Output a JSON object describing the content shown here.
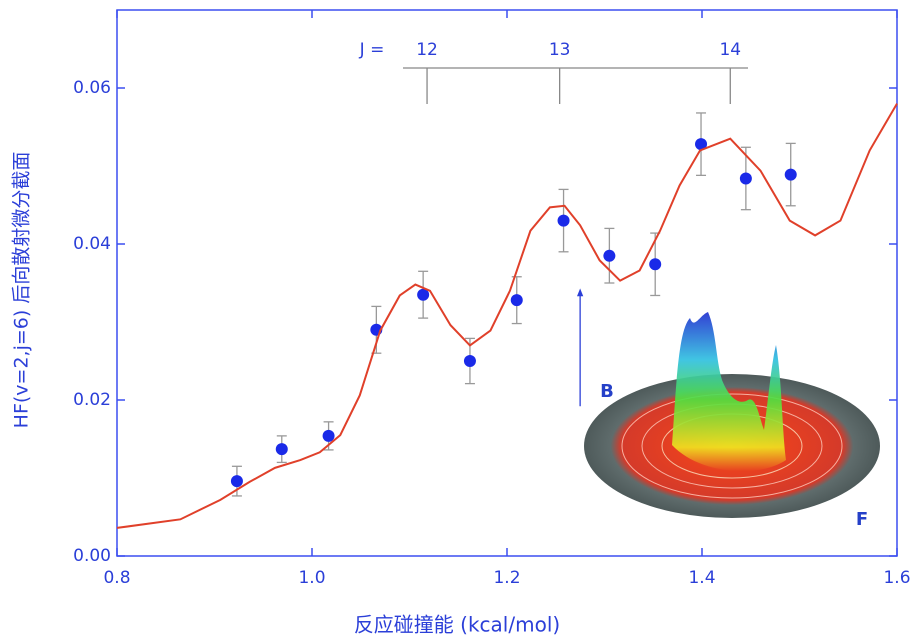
{
  "chart_data": {
    "type": "scatter",
    "x_label": "反应碰撞能 (kcal/mol)",
    "y_label": "HF(v=2,j=6) 后向散射微分截面",
    "xlim": [
      0.8,
      1.6
    ],
    "ylim": [
      0,
      0.07
    ],
    "xticks": [
      0.8,
      {
        "value": 1.0,
        "label": "1.0"
      },
      1.2,
      1.4,
      1.6
    ],
    "yticks": [
      {
        "value": 0,
        "label": "0.00"
      },
      0.02,
      0.04,
      0.06
    ],
    "series": [
      {
        "type": "scatter",
        "color": "#1a2ae8",
        "x": [
          0.923,
          0.969,
          1.017,
          1.066,
          1.114,
          1.162,
          1.21,
          1.258,
          1.305,
          1.352,
          1.399,
          1.445,
          1.491
        ],
        "values": [
          0.0096,
          0.0137,
          0.0154,
          0.029,
          0.0335,
          0.025,
          0.0328,
          0.043,
          0.0385,
          0.0374,
          0.0528,
          0.0484,
          0.0489
        ],
        "errors": [
          0.0019,
          0.0017,
          0.0018,
          0.003,
          0.003,
          0.0029,
          0.003,
          0.004,
          0.0035,
          0.004,
          0.004,
          0.004,
          0.004
        ]
      },
      {
        "type": "line",
        "color": "#e0402a",
        "x": [
          0.8,
          0.865,
          0.906,
          0.936,
          0.962,
          0.988,
          1.008,
          1.029,
          1.049,
          1.07,
          1.09,
          1.106,
          1.121,
          1.142,
          1.162,
          1.183,
          1.203,
          1.224,
          1.244,
          1.259,
          1.275,
          1.295,
          1.316,
          1.336,
          1.357,
          1.377,
          1.398,
          1.429,
          1.46,
          1.49,
          1.516,
          1.542,
          1.572,
          1.6
        ],
        "values": [
          0.0036,
          0.0047,
          0.0072,
          0.0095,
          0.0113,
          0.0123,
          0.0133,
          0.0155,
          0.0206,
          0.0289,
          0.0334,
          0.0348,
          0.034,
          0.0296,
          0.027,
          0.0289,
          0.034,
          0.0417,
          0.0447,
          0.0449,
          0.0424,
          0.0379,
          0.0353,
          0.0366,
          0.0417,
          0.0475,
          0.052,
          0.0535,
          0.0494,
          0.043,
          0.0411,
          0.043,
          0.052,
          0.058
        ]
      }
    ],
    "j_label": "J =",
    "j_marks": [
      {
        "label": "12",
        "x": 1.118
      },
      {
        "label": "13",
        "x": 1.254
      },
      {
        "label": "14",
        "x": 1.429
      }
    ],
    "arrow": {
      "x": 1.275,
      "y_from": 0.0192,
      "y_to": 0.0338
    },
    "inset_labels": [
      "B",
      "F"
    ]
  }
}
